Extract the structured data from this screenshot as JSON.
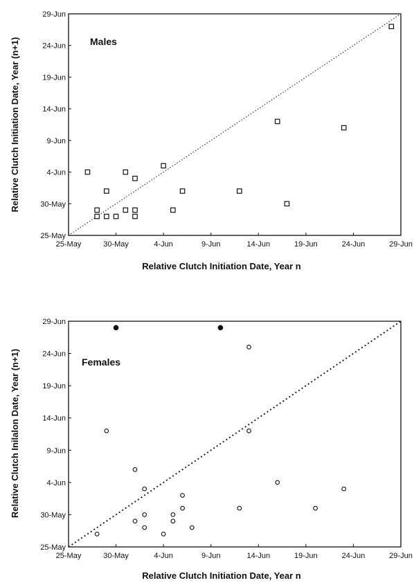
{
  "chart_data": [
    {
      "type": "scatter",
      "title": "Males",
      "xlabel": "Relative Clutch Initiation Date, Year n",
      "ylabel": "Relative Clutch Initiation Date, Year (n+1)",
      "xlim": [
        "2000-05-25",
        "2000-06-29"
      ],
      "ylim": [
        "2000-05-25",
        "2000-06-29"
      ],
      "tick_labels": [
        "25-May",
        "30-May",
        "4-Jun",
        "9-Jun",
        "14-Jun",
        "19-Jun",
        "24-Jun",
        "29-Jun"
      ],
      "reference_line": "dotted 1:1 diagonal",
      "marker": "open-square",
      "series": [
        {
          "points": [
            {
              "x": "2000-05-27",
              "y": "2000-06-04"
            },
            {
              "x": "2000-05-28",
              "y": "2000-05-29"
            },
            {
              "x": "2000-05-28",
              "y": "2000-05-28"
            },
            {
              "x": "2000-05-29",
              "y": "2000-06-01"
            },
            {
              "x": "2000-05-29",
              "y": "2000-05-28"
            },
            {
              "x": "2000-05-30",
              "y": "2000-05-28"
            },
            {
              "x": "2000-05-31",
              "y": "2000-06-04"
            },
            {
              "x": "2000-05-31",
              "y": "2000-05-29"
            },
            {
              "x": "2000-06-01",
              "y": "2000-06-03"
            },
            {
              "x": "2000-06-01",
              "y": "2000-05-29"
            },
            {
              "x": "2000-06-01",
              "y": "2000-05-28"
            },
            {
              "x": "2000-06-04",
              "y": "2000-06-05"
            },
            {
              "x": "2000-06-05",
              "y": "2000-05-29"
            },
            {
              "x": "2000-06-06",
              "y": "2000-06-01"
            },
            {
              "x": "2000-06-12",
              "y": "2000-06-01"
            },
            {
              "x": "2000-06-16",
              "y": "2000-06-12"
            },
            {
              "x": "2000-06-17",
              "y": "2000-05-30"
            },
            {
              "x": "2000-06-23",
              "y": "2000-06-11"
            },
            {
              "x": "2000-06-28",
              "y": "2000-06-27"
            }
          ]
        }
      ]
    },
    {
      "type": "scatter",
      "title": "Females",
      "xlabel": "Relative Clutch Initiation Date, Year n",
      "ylabel": "Relative Clutch Inilalon Date, Year (n+1)",
      "xlim": [
        "2000-05-25",
        "2000-06-29"
      ],
      "ylim": [
        "2000-05-25",
        "2000-06-29"
      ],
      "tick_labels": [
        "25-May",
        "30-May",
        "4-Jun",
        "9-Jun",
        "14-Jun",
        "19-Jun",
        "24-Jun",
        "29-Jun"
      ],
      "reference_line": "dotted 1:1 diagonal",
      "series": [
        {
          "marker": "open-circle",
          "points": [
            {
              "x": "2000-05-28",
              "y": "2000-05-27"
            },
            {
              "x": "2000-05-29",
              "y": "2000-06-12"
            },
            {
              "x": "2000-06-01",
              "y": "2000-06-06"
            },
            {
              "x": "2000-06-01",
              "y": "2000-05-29"
            },
            {
              "x": "2000-06-02",
              "y": "2000-06-03"
            },
            {
              "x": "2000-06-02",
              "y": "2000-05-30"
            },
            {
              "x": "2000-06-02",
              "y": "2000-05-28"
            },
            {
              "x": "2000-06-04",
              "y": "2000-05-27"
            },
            {
              "x": "2000-06-05",
              "y": "2000-05-30"
            },
            {
              "x": "2000-06-05",
              "y": "2000-05-29"
            },
            {
              "x": "2000-06-06",
              "y": "2000-06-02"
            },
            {
              "x": "2000-06-06",
              "y": "2000-05-31"
            },
            {
              "x": "2000-06-07",
              "y": "2000-05-28"
            },
            {
              "x": "2000-06-12",
              "y": "2000-05-31"
            },
            {
              "x": "2000-06-13",
              "y": "2000-06-25"
            },
            {
              "x": "2000-06-13",
              "y": "2000-06-12"
            },
            {
              "x": "2000-06-16",
              "y": "2000-06-04"
            },
            {
              "x": "2000-06-20",
              "y": "2000-05-31"
            },
            {
              "x": "2000-06-23",
              "y": "2000-06-03"
            }
          ]
        },
        {
          "marker": "filled-circle",
          "points": [
            {
              "x": "2000-05-30",
              "y": "2000-06-28"
            },
            {
              "x": "2000-06-10",
              "y": "2000-06-28"
            }
          ]
        }
      ]
    }
  ]
}
